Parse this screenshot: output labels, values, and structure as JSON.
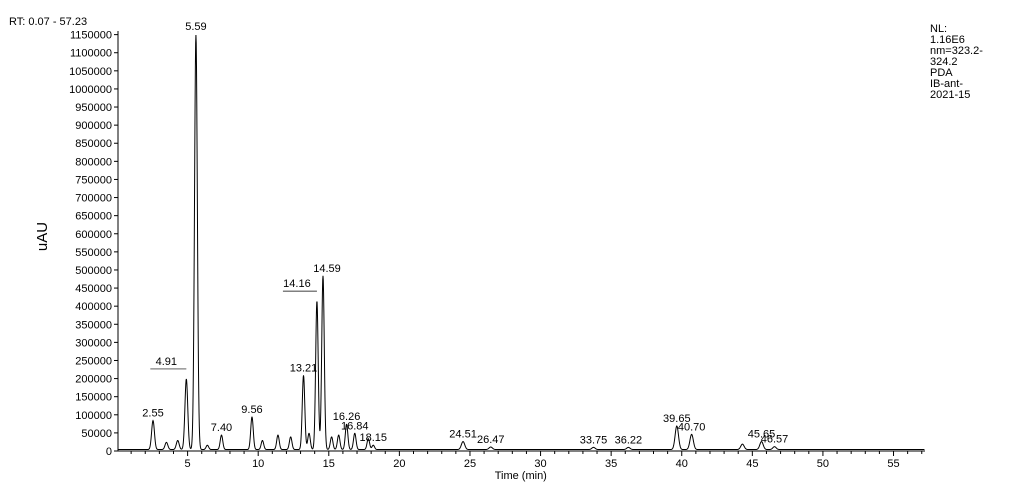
{
  "header": {
    "rt_range": "RT: 0.07 - 57.23",
    "nl_lines": [
      "NL:",
      "1.16E6",
      "nm=323.2-",
      "324.2",
      "PDA",
      "IB-ant-",
      "2021-15"
    ]
  },
  "chart_data": {
    "type": "line",
    "title": "",
    "xlabel": "Time (min)",
    "ylabel": "uAU",
    "xlim": [
      0.07,
      57.23
    ],
    "ylim": [
      0,
      1160000
    ],
    "x_ticks": [
      5,
      10,
      15,
      20,
      25,
      30,
      35,
      40,
      45,
      50,
      55
    ],
    "y_ticks": [
      0,
      50000,
      100000,
      150000,
      200000,
      250000,
      300000,
      350000,
      400000,
      450000,
      500000,
      550000,
      600000,
      650000,
      700000,
      750000,
      800000,
      850000,
      900000,
      950000,
      1000000,
      1050000,
      1100000,
      1150000
    ],
    "grid": false,
    "baseline": 4000,
    "peaks": [
      {
        "rt": 2.55,
        "height": 80000,
        "label": "2.55"
      },
      {
        "rt": 3.5,
        "height": 20000
      },
      {
        "rt": 4.3,
        "height": 25000
      },
      {
        "rt": 4.91,
        "height": 195000,
        "label": "4.91"
      },
      {
        "rt": 5.59,
        "height": 1145000,
        "label": "5.59"
      },
      {
        "rt": 6.4,
        "height": 12000
      },
      {
        "rt": 7.4,
        "height": 40000,
        "label": "7.40"
      },
      {
        "rt": 9.56,
        "height": 90000,
        "label": "9.56"
      },
      {
        "rt": 10.3,
        "height": 25000
      },
      {
        "rt": 11.4,
        "height": 40000
      },
      {
        "rt": 12.3,
        "height": 35000
      },
      {
        "rt": 13.21,
        "height": 205000,
        "label": "13.21"
      },
      {
        "rt": 13.6,
        "height": 45000
      },
      {
        "rt": 14.16,
        "height": 410000,
        "label": "14.16"
      },
      {
        "rt": 14.59,
        "height": 480000,
        "label": "14.59"
      },
      {
        "rt": 15.2,
        "height": 35000
      },
      {
        "rt": 15.7,
        "height": 40000
      },
      {
        "rt": 16.26,
        "height": 70000,
        "label": "16.26"
      },
      {
        "rt": 16.84,
        "height": 45000,
        "label": "16.84"
      },
      {
        "rt": 17.8,
        "height": 30000
      },
      {
        "rt": 18.15,
        "height": 12000,
        "label": "18.15"
      },
      {
        "rt": 24.51,
        "height": 22000,
        "label": "24.51"
      },
      {
        "rt": 26.47,
        "height": 7000,
        "label": "26.47"
      },
      {
        "rt": 33.75,
        "height": 6000,
        "label": "33.75"
      },
      {
        "rt": 36.22,
        "height": 6000,
        "label": "36.22"
      },
      {
        "rt": 39.65,
        "height": 65000,
        "label": "39.65"
      },
      {
        "rt": 40.7,
        "height": 42000,
        "label": "40.70"
      },
      {
        "rt": 44.3,
        "height": 15000
      },
      {
        "rt": 45.65,
        "height": 22000,
        "label": "45.65"
      },
      {
        "rt": 46.57,
        "height": 8000,
        "label": "46.57"
      }
    ]
  }
}
